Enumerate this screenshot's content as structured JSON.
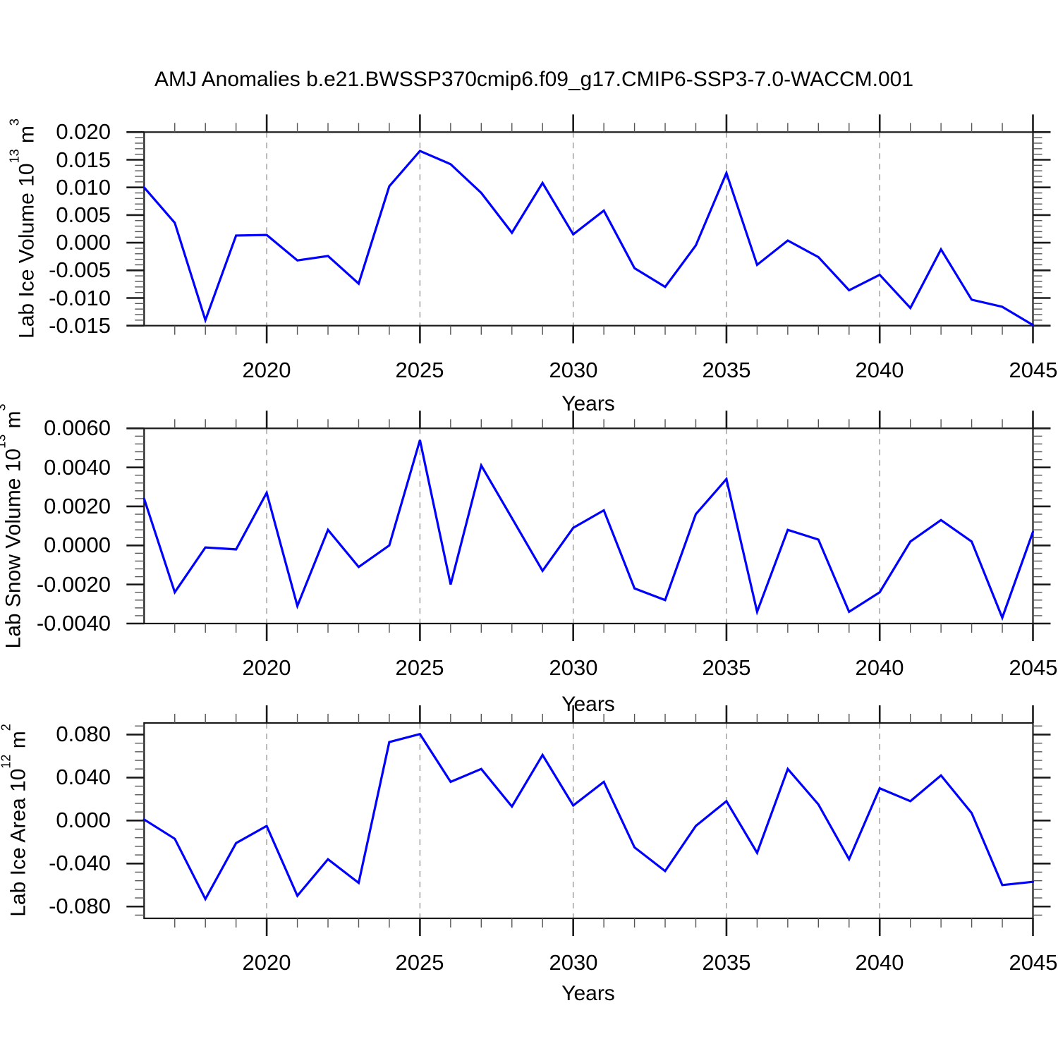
{
  "title": "AMJ Anomalies b.e21.BWSSP370cmip6.f09_g17.CMIP6-SSP3-7.0-WACCM.001",
  "colors": {
    "line": "#0000ff",
    "grid": "#999999",
    "axis": "#1a1a1a",
    "minor_tick": "#555555",
    "text": "#000000"
  },
  "chart_data": [
    {
      "type": "line",
      "title": "",
      "ylabel": {
        "text": "Lab Ice Volume 10",
        "exp": "13",
        "unit": " m",
        "unit_exp": "3"
      },
      "xlabel": "Years",
      "xlim": [
        2016,
        2045
      ],
      "ylim": [
        -0.015,
        0.02
      ],
      "x": [
        2016,
        2017,
        2018,
        2019,
        2020,
        2021,
        2022,
        2023,
        2024,
        2025,
        2026,
        2027,
        2028,
        2029,
        2030,
        2031,
        2032,
        2033,
        2034,
        2035,
        2036,
        2037,
        2038,
        2039,
        2040,
        2041,
        2042,
        2043,
        2044,
        2045
      ],
      "values": [
        0.01,
        0.0036,
        -0.014,
        0.0013,
        0.0014,
        -0.0032,
        -0.0024,
        -0.0074,
        0.0102,
        0.0166,
        0.0142,
        0.009,
        0.0018,
        0.0108,
        0.0015,
        0.0058,
        -0.0046,
        -0.008,
        -0.0005,
        0.0126,
        -0.004,
        0.0004,
        -0.0026,
        -0.0086,
        -0.0058,
        -0.0118,
        -0.0012,
        -0.0103,
        -0.0116,
        -0.0149
      ],
      "yticks": [
        {
          "v": 0.02,
          "label": "0.020"
        },
        {
          "v": 0.015,
          "label": "0.015"
        },
        {
          "v": 0.01,
          "label": "0.010"
        },
        {
          "v": 0.005,
          "label": "0.005"
        },
        {
          "v": 0.0,
          "label": "0.000"
        },
        {
          "v": -0.005,
          "label": "-0.005"
        },
        {
          "v": -0.01,
          "label": "-0.010"
        },
        {
          "v": -0.015,
          "label": "-0.015"
        }
      ],
      "y_minor_step": 0.001,
      "xticks": [
        {
          "v": 2020,
          "label": "2020"
        },
        {
          "v": 2025,
          "label": "2025"
        },
        {
          "v": 2030,
          "label": "2030"
        },
        {
          "v": 2035,
          "label": "2035"
        },
        {
          "v": 2040,
          "label": "2040"
        },
        {
          "v": 2045,
          "label": "2045"
        }
      ],
      "x_minor_step": 1,
      "grid_x": [
        2020,
        2025,
        2030,
        2035,
        2040
      ]
    },
    {
      "type": "line",
      "title": "",
      "ylabel": {
        "text": "Lab Snow Volume 10",
        "exp": "13",
        "unit": " m",
        "unit_exp": "3"
      },
      "xlabel": "Years",
      "xlim": [
        2016,
        2045
      ],
      "ylim": [
        -0.004,
        0.006
      ],
      "x": [
        2016,
        2017,
        2018,
        2019,
        2020,
        2021,
        2022,
        2023,
        2024,
        2025,
        2026,
        2027,
        2028,
        2029,
        2030,
        2031,
        2032,
        2033,
        2034,
        2035,
        2036,
        2037,
        2038,
        2039,
        2040,
        2041,
        2042,
        2043,
        2044,
        2045
      ],
      "values": [
        0.0024,
        -0.0024,
        -0.0001,
        -0.0002,
        0.0027,
        -0.0031,
        0.0008,
        -0.0011,
        0.0,
        0.0054,
        -0.002,
        0.0041,
        0.0014,
        -0.0013,
        0.0009,
        0.0018,
        -0.0022,
        -0.0028,
        0.0016,
        0.0034,
        -0.0034,
        0.0008,
        0.0003,
        -0.0034,
        -0.0024,
        0.0002,
        0.0013,
        0.0002,
        -0.0037,
        0.0007
      ],
      "yticks": [
        {
          "v": 0.006,
          "label": "0.0060"
        },
        {
          "v": 0.004,
          "label": "0.0040"
        },
        {
          "v": 0.002,
          "label": "0.0020"
        },
        {
          "v": 0.0,
          "label": "0.0000"
        },
        {
          "v": -0.002,
          "label": "-0.0020"
        },
        {
          "v": -0.004,
          "label": "-0.0040"
        }
      ],
      "y_minor_step": 0.0004,
      "xticks": [
        {
          "v": 2020,
          "label": "2020"
        },
        {
          "v": 2025,
          "label": "2025"
        },
        {
          "v": 2030,
          "label": "2030"
        },
        {
          "v": 2035,
          "label": "2035"
        },
        {
          "v": 2040,
          "label": "2040"
        },
        {
          "v": 2045,
          "label": "2045"
        }
      ],
      "x_minor_step": 1,
      "grid_x": [
        2020,
        2025,
        2030,
        2035,
        2040
      ]
    },
    {
      "type": "line",
      "title": "",
      "ylabel": {
        "text": "Lab Ice Area 10",
        "exp": "12",
        "unit": " m",
        "unit_exp": "2"
      },
      "xlabel": "Years",
      "xlim": [
        2016,
        2045
      ],
      "ylim": [
        -0.091,
        0.0908
      ],
      "x": [
        2016,
        2017,
        2018,
        2019,
        2020,
        2021,
        2022,
        2023,
        2024,
        2025,
        2026,
        2027,
        2028,
        2029,
        2030,
        2031,
        2032,
        2033,
        2034,
        2035,
        2036,
        2037,
        2038,
        2039,
        2040,
        2041,
        2042,
        2043,
        2044,
        2045
      ],
      "values": [
        0.001,
        -0.017,
        -0.073,
        -0.021,
        -0.005,
        -0.07,
        -0.036,
        -0.058,
        0.073,
        0.0805,
        0.036,
        0.048,
        0.013,
        0.061,
        0.014,
        0.036,
        -0.025,
        -0.047,
        -0.005,
        0.018,
        -0.03,
        0.048,
        0.015,
        -0.036,
        0.03,
        0.018,
        0.042,
        0.007,
        -0.06,
        -0.057
      ],
      "yticks": [
        {
          "v": 0.08,
          "label": "0.080"
        },
        {
          "v": 0.04,
          "label": "0.040"
        },
        {
          "v": 0.0,
          "label": "0.000"
        },
        {
          "v": -0.04,
          "label": "-0.040"
        },
        {
          "v": -0.08,
          "label": "-0.080"
        }
      ],
      "y_minor_step": 0.008,
      "xticks": [
        {
          "v": 2020,
          "label": "2020"
        },
        {
          "v": 2025,
          "label": "2025"
        },
        {
          "v": 2030,
          "label": "2030"
        },
        {
          "v": 2035,
          "label": "2035"
        },
        {
          "v": 2040,
          "label": "2040"
        },
        {
          "v": 2045,
          "label": "2045"
        }
      ],
      "x_minor_step": 1,
      "grid_x": [
        2020,
        2025,
        2030,
        2035,
        2040
      ]
    }
  ]
}
